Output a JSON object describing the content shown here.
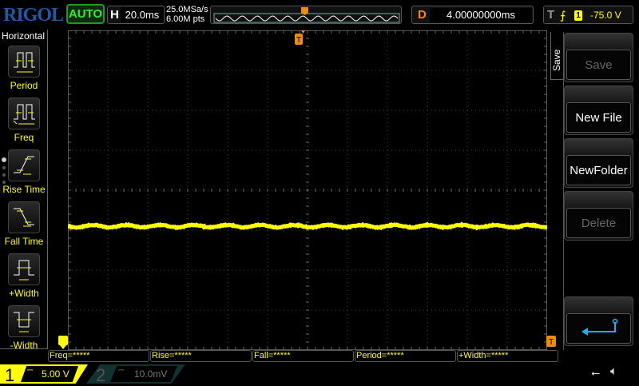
{
  "header": {
    "brand": "RIGOL",
    "run_status": "AUTO",
    "timebase_label": "H",
    "timebase": "20.0ms",
    "sample_rate": "25.0MSa/s",
    "memory_depth": "6.00M pts",
    "delay_label": "D",
    "delay": "4.00000000ms",
    "trigger_label": "T",
    "trigger_level": "-75.0 V"
  },
  "sidebar": {
    "title": "Horizontal",
    "items": [
      {
        "label": "Period"
      },
      {
        "label": "Freq"
      },
      {
        "label": "Rise Time"
      },
      {
        "label": "Fall Time"
      },
      {
        "label": "+Width"
      },
      {
        "label": "-Width"
      }
    ]
  },
  "measurements": [
    "Freq=*****",
    "Rise=*****",
    "Fall=*****",
    "Period=*****",
    "+Width=*****"
  ],
  "menu": {
    "title": "Save",
    "buttons": [
      {
        "label": "Save",
        "enabled": false
      },
      {
        "label": "New File",
        "enabled": true
      },
      {
        "label": "NewFolder",
        "enabled": true
      },
      {
        "label": "Delete",
        "enabled": false
      }
    ],
    "back_icon": "return-arrow-icon"
  },
  "channels": [
    {
      "num": "1",
      "scale": "5.00 V",
      "color": "#ffff00",
      "active": true
    },
    {
      "num": "2",
      "scale": "10.0mV",
      "color": "#2a6060",
      "active": false
    }
  ],
  "status_icons": [
    "usb-icon",
    "speaker-muted-icon"
  ],
  "colors": {
    "trace": "#ffff00",
    "trigger": "#f28a11",
    "brand": "#1d5aa8",
    "auto": "#2cf02c"
  }
}
